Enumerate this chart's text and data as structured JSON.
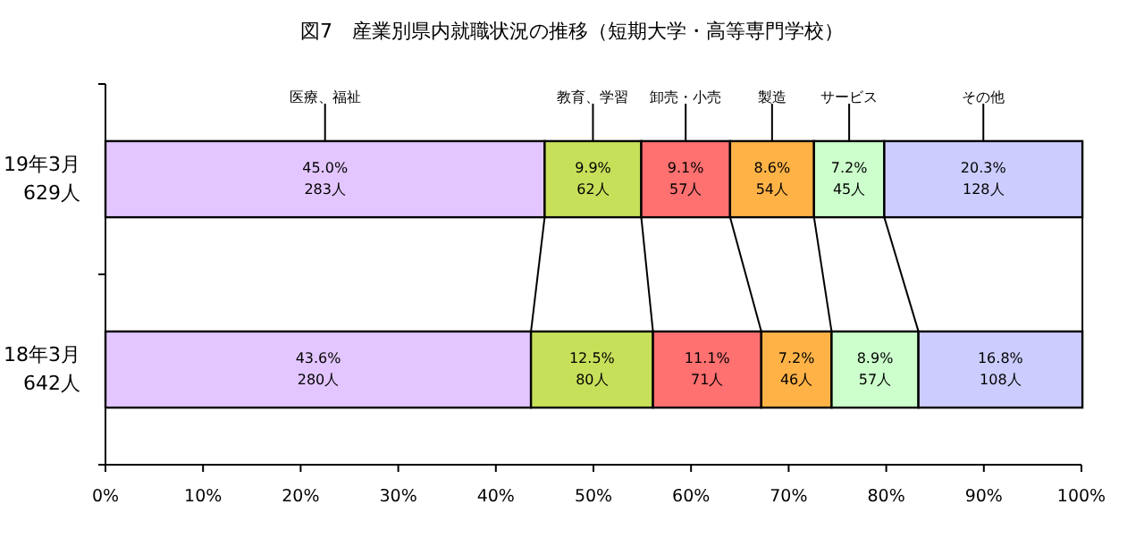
{
  "chart_data": {
    "type": "bar",
    "orientation": "horizontal",
    "stacked": true,
    "title": "図7　産業別県内就職状況の推移（短期大学・高等専門学校）",
    "categories": [
      "19年3月\n629人",
      "18年3月\n642人"
    ],
    "xlim": [
      0,
      100
    ],
    "xticks": [
      {
        "value": 0,
        "label": "0%"
      },
      {
        "value": 10,
        "label": "10%"
      },
      {
        "value": 20,
        "label": "20%"
      },
      {
        "value": 30,
        "label": "30%"
      },
      {
        "value": 40,
        "label": "40%"
      },
      {
        "value": 50,
        "label": "50%"
      },
      {
        "value": 60,
        "label": "60%"
      },
      {
        "value": 70,
        "label": "70%"
      },
      {
        "value": 80,
        "label": "80%"
      },
      {
        "value": 90,
        "label": "90%"
      },
      {
        "value": 100,
        "label": "100%"
      }
    ],
    "grid": false,
    "legend": false,
    "series": [
      {
        "name": "医療、福祉",
        "color": "#e3c6ff",
        "values": [
          45.0,
          43.6
        ],
        "value_labels": [
          "45.0%\n283人",
          "43.6%\n280人"
        ]
      },
      {
        "name": "教育、学習",
        "color": "#c6e05a",
        "values": [
          9.9,
          12.5
        ],
        "value_labels": [
          "9.9%\n62人",
          "12.5%\n80人"
        ]
      },
      {
        "name": "卸売・小売",
        "color": "#ff7070",
        "values": [
          9.1,
          11.1
        ],
        "value_labels": [
          "9.1%\n57人",
          "11.1%\n71人"
        ]
      },
      {
        "name": "製造",
        "color": "#ffb347",
        "values": [
          8.6,
          7.2
        ],
        "value_labels": [
          "8.6%\n54人",
          "7.2%\n46人"
        ]
      },
      {
        "name": "サービス",
        "color": "#ccffcc",
        "values": [
          7.2,
          8.9
        ],
        "value_labels": [
          "7.2%\n45人",
          "8.9%\n57人"
        ]
      },
      {
        "name": "その他",
        "color": "#ccccff",
        "values": [
          20.3,
          16.8
        ],
        "value_labels": [
          "20.3%\n128人",
          "16.8%\n108人"
        ]
      }
    ]
  }
}
